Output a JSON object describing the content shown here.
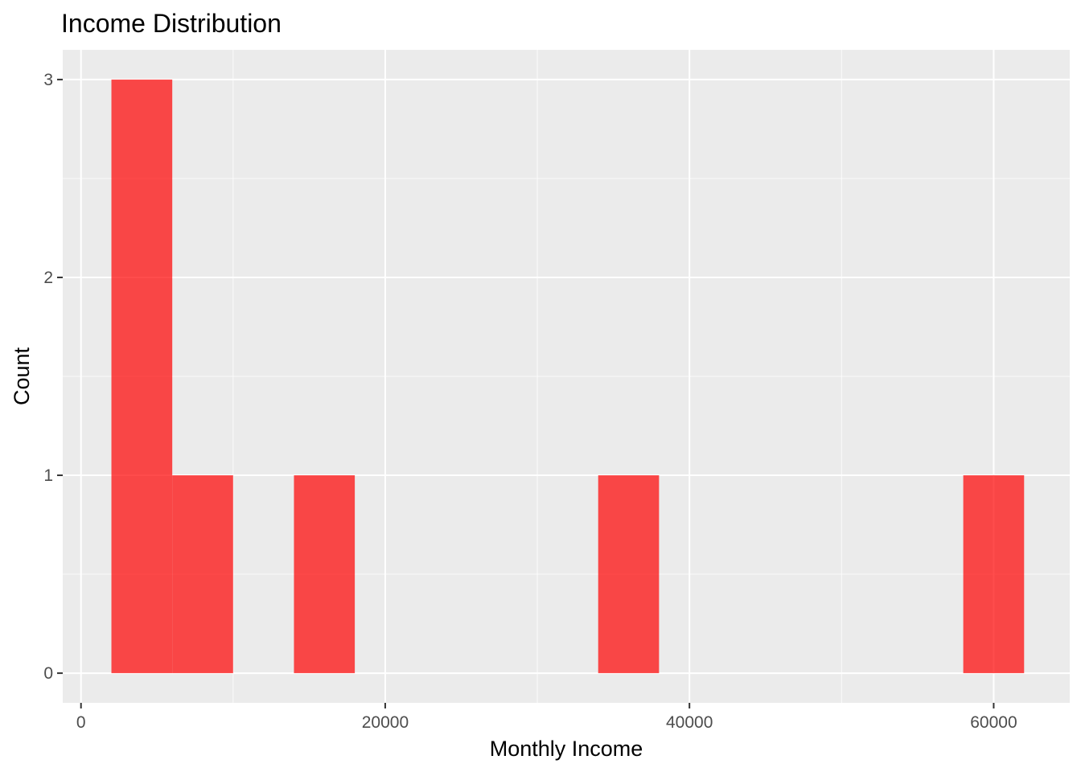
{
  "chart_data": {
    "type": "bar",
    "title": "Income Distribution",
    "xlabel": "Monthly Income",
    "ylabel": "Count",
    "xlim": [
      -1200,
      65000
    ],
    "ylim": [
      -0.15,
      3.15
    ],
    "x_ticks": [
      0,
      20000,
      40000,
      60000
    ],
    "x_tick_labels": [
      "0",
      "20000",
      "40000",
      "60000"
    ],
    "y_ticks": [
      0,
      1,
      2,
      3
    ],
    "y_tick_labels": [
      "0",
      "1",
      "2",
      "3"
    ],
    "bin_width": 4000,
    "bins": [
      {
        "x0": 2000,
        "x1": 6000,
        "count": 3
      },
      {
        "x0": 6000,
        "x1": 10000,
        "count": 1
      },
      {
        "x0": 14000,
        "x1": 18000,
        "count": 1
      },
      {
        "x0": 34000,
        "x1": 38000,
        "count": 1
      },
      {
        "x0": 58000,
        "x1": 62000,
        "count": 1
      }
    ],
    "bar_color": "#ff0000",
    "bar_alpha": 0.7,
    "panel_background": "#ebebeb",
    "grid": true,
    "legend": "none"
  }
}
